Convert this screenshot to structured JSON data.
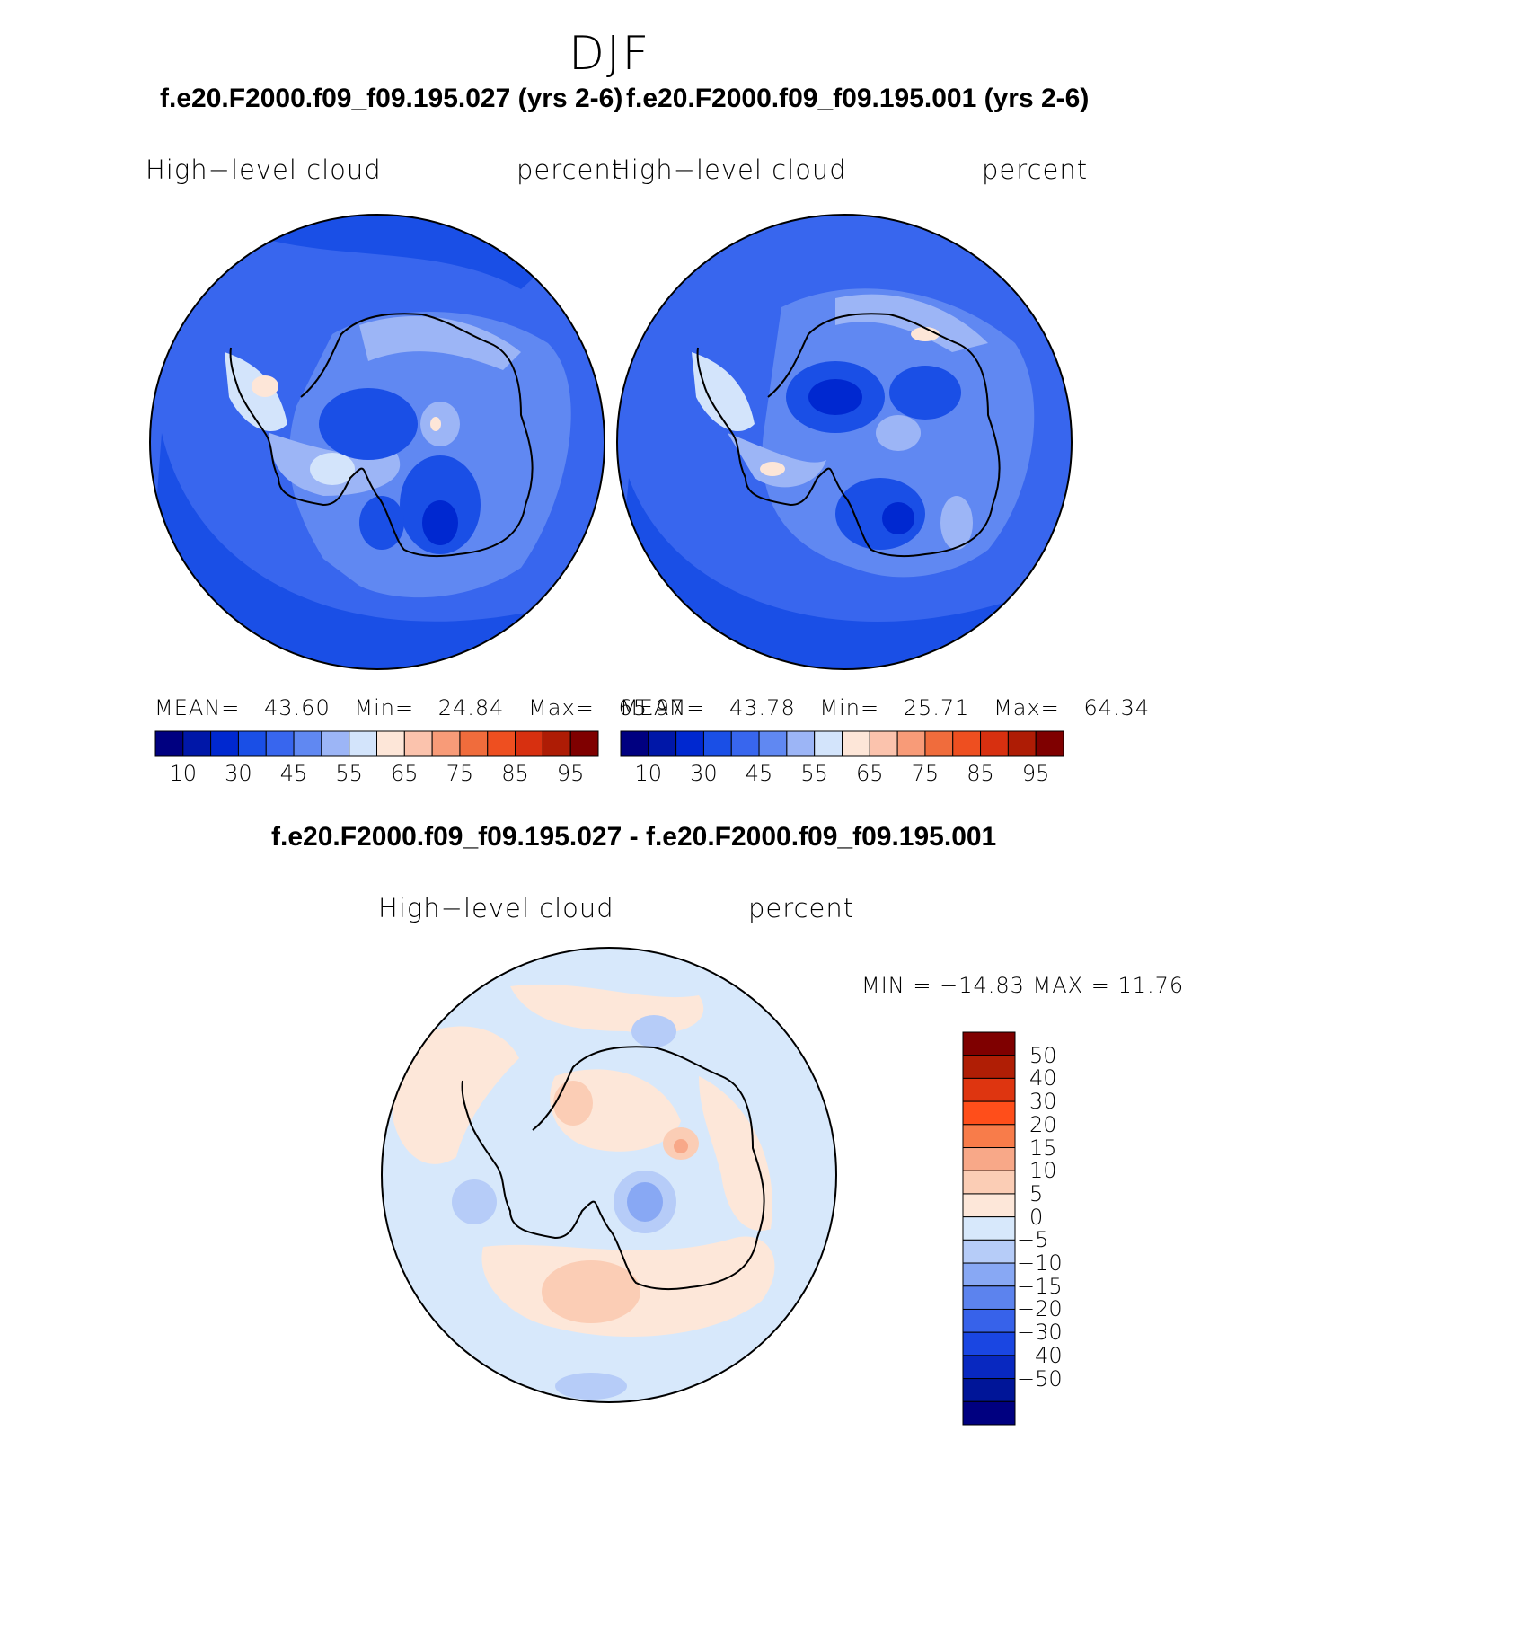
{
  "season": "DJF",
  "panels": [
    {
      "case_title": "f.e20.F2000.f09_f09.195.027 (yrs 2-6)",
      "variable": "High−level  cloud",
      "units": "percent",
      "stats": {
        "mean_label": "MEAN=",
        "mean": "43.60",
        "min_label": "Min=",
        "min": "24.84",
        "max_label": "Max=",
        "max": "65.97"
      }
    },
    {
      "case_title": "f.e20.F2000.f09_f09.195.001 (yrs 2-6)",
      "variable": "High−level  cloud",
      "units": "percent",
      "stats": {
        "mean_label": "MEAN=",
        "mean": "43.78",
        "min_label": "Min=",
        "min": "25.71",
        "max_label": "Max=",
        "max": "64.34"
      }
    }
  ],
  "abs_colorbar": {
    "colors": [
      "#000080",
      "#0017a8",
      "#0028d0",
      "#1a4fe6",
      "#3866ee",
      "#6088f2",
      "#9cb5f6",
      "#d3e4fb",
      "#fde6d8",
      "#fbc3ad",
      "#f89b78",
      "#f06c3c",
      "#ee4f20",
      "#d73010",
      "#ae1c05",
      "#7f0000"
    ],
    "tick_labels": [
      "10",
      "30",
      "45",
      "55",
      "65",
      "75",
      "85",
      "95"
    ]
  },
  "diff_panel": {
    "title": "f.e20.F2000.f09_f09.195.027 - f.e20.F2000.f09_f09.195.001",
    "variable": "High−level  cloud",
    "units": "percent",
    "minmax": "MIN  =  −14.83  MAX  =     11.76"
  },
  "diff_colorbar": {
    "colors": [
      "#7f0000",
      "#b01e05",
      "#de3510",
      "#ff4e1a",
      "#f87c4a",
      "#f8a888",
      "#fbcdb5",
      "#fde7d9",
      "#d7e8fb",
      "#b6ccf8",
      "#88a8f4",
      "#5c83ee",
      "#3762ea",
      "#1a46e2",
      "#0828c0",
      "#001598",
      "#000080"
    ],
    "tick_labels": [
      "50",
      "40",
      "30",
      "20",
      "15",
      "10",
      "5",
      "0",
      "−5",
      "−10",
      "−15",
      "−20",
      "−30",
      "−40",
      "−50"
    ]
  },
  "colors": {
    "land_outline": "#000000"
  }
}
